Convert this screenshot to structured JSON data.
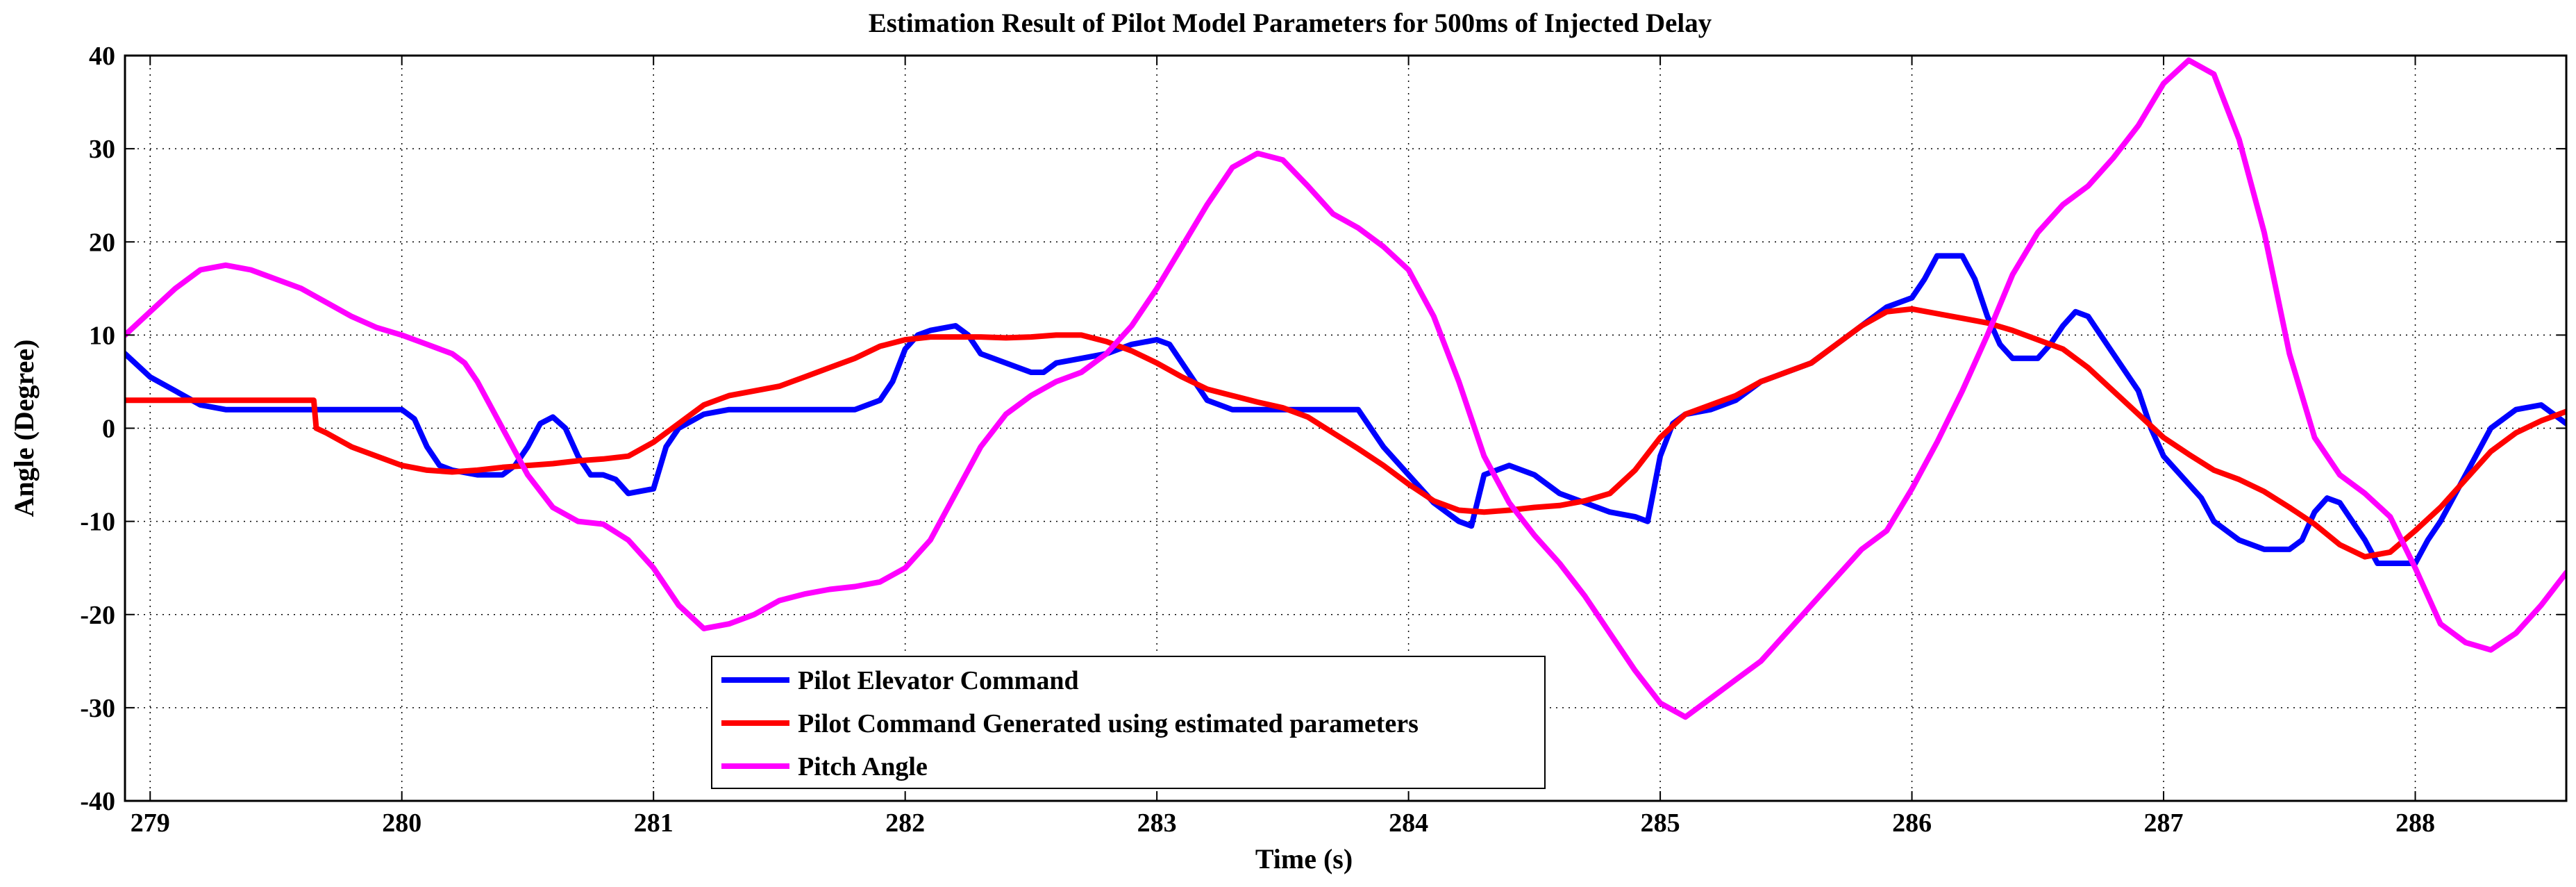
{
  "chart_data": {
    "type": "line",
    "title": "Estimation Result of Pilot Model Parameters for 500ms of Injected Delay",
    "xlabel": "Time (s)",
    "ylabel": "Angle (Degree)",
    "xlim": [
      278.9,
      288.6
    ],
    "ylim": [
      -40,
      40
    ],
    "x_ticks": [
      279,
      280,
      281,
      282,
      283,
      284,
      285,
      286,
      287,
      288
    ],
    "y_ticks": [
      -40,
      -30,
      -20,
      -10,
      0,
      10,
      20,
      30,
      40
    ],
    "grid": true,
    "legend_position": "bottom-center",
    "series": [
      {
        "name": "Pilot Elevator Command",
        "color": "#0000ff",
        "points": [
          [
            278.9,
            8
          ],
          [
            279.0,
            5.5
          ],
          [
            279.1,
            4
          ],
          [
            279.2,
            2.5
          ],
          [
            279.3,
            2
          ],
          [
            279.5,
            2
          ],
          [
            279.7,
            2
          ],
          [
            279.85,
            2
          ],
          [
            280.0,
            2
          ],
          [
            280.05,
            1
          ],
          [
            280.1,
            -2
          ],
          [
            280.15,
            -4
          ],
          [
            280.2,
            -4.5
          ],
          [
            280.3,
            -5
          ],
          [
            280.4,
            -5
          ],
          [
            280.45,
            -4
          ],
          [
            280.5,
            -2
          ],
          [
            280.55,
            0.5
          ],
          [
            280.6,
            1.2
          ],
          [
            280.65,
            0
          ],
          [
            280.7,
            -3
          ],
          [
            280.75,
            -5
          ],
          [
            280.8,
            -5
          ],
          [
            280.85,
            -5.5
          ],
          [
            280.9,
            -7
          ],
          [
            281.0,
            -6.5
          ],
          [
            281.05,
            -2
          ],
          [
            281.1,
            0
          ],
          [
            281.2,
            1.5
          ],
          [
            281.3,
            2
          ],
          [
            281.5,
            2
          ],
          [
            281.7,
            2
          ],
          [
            281.8,
            2
          ],
          [
            281.9,
            3
          ],
          [
            281.95,
            5
          ],
          [
            282.0,
            8.5
          ],
          [
            282.05,
            10
          ],
          [
            282.1,
            10.5
          ],
          [
            282.2,
            11
          ],
          [
            282.25,
            10
          ],
          [
            282.3,
            8
          ],
          [
            282.4,
            7
          ],
          [
            282.5,
            6
          ],
          [
            282.55,
            6
          ],
          [
            282.6,
            7
          ],
          [
            282.7,
            7.5
          ],
          [
            282.8,
            8
          ],
          [
            282.9,
            9
          ],
          [
            283.0,
            9.5
          ],
          [
            283.05,
            9
          ],
          [
            283.1,
            7
          ],
          [
            283.2,
            3
          ],
          [
            283.3,
            2
          ],
          [
            283.5,
            2
          ],
          [
            283.7,
            2
          ],
          [
            283.8,
            2
          ],
          [
            283.85,
            0
          ],
          [
            283.9,
            -2
          ],
          [
            284.0,
            -5
          ],
          [
            284.1,
            -8
          ],
          [
            284.2,
            -10
          ],
          [
            284.25,
            -10.5
          ],
          [
            284.3,
            -5
          ],
          [
            284.4,
            -4
          ],
          [
            284.5,
            -5
          ],
          [
            284.6,
            -7
          ],
          [
            284.7,
            -8
          ],
          [
            284.8,
            -9
          ],
          [
            284.9,
            -9.5
          ],
          [
            284.95,
            -10
          ],
          [
            285.0,
            -3
          ],
          [
            285.05,
            0.5
          ],
          [
            285.1,
            1.5
          ],
          [
            285.2,
            2
          ],
          [
            285.3,
            3
          ],
          [
            285.4,
            5
          ],
          [
            285.5,
            6
          ],
          [
            285.6,
            7
          ],
          [
            285.7,
            9
          ],
          [
            285.8,
            11
          ],
          [
            285.9,
            13
          ],
          [
            286.0,
            14
          ],
          [
            286.05,
            16
          ],
          [
            286.1,
            18.5
          ],
          [
            286.2,
            18.5
          ],
          [
            286.25,
            16
          ],
          [
            286.3,
            12
          ],
          [
            286.35,
            9
          ],
          [
            286.4,
            7.5
          ],
          [
            286.5,
            7.5
          ],
          [
            286.55,
            9
          ],
          [
            286.6,
            11
          ],
          [
            286.65,
            12.5
          ],
          [
            286.7,
            12
          ],
          [
            286.8,
            8
          ],
          [
            286.9,
            4
          ],
          [
            286.95,
            0
          ],
          [
            287.0,
            -3
          ],
          [
            287.1,
            -6
          ],
          [
            287.15,
            -7.5
          ],
          [
            287.2,
            -10
          ],
          [
            287.3,
            -12
          ],
          [
            287.4,
            -13
          ],
          [
            287.5,
            -13
          ],
          [
            287.55,
            -12
          ],
          [
            287.6,
            -9
          ],
          [
            287.65,
            -7.5
          ],
          [
            287.7,
            -8
          ],
          [
            287.8,
            -12
          ],
          [
            287.85,
            -14.5
          ],
          [
            287.9,
            -14.5
          ],
          [
            288.0,
            -14.5
          ],
          [
            288.05,
            -12
          ],
          [
            288.1,
            -10
          ],
          [
            288.2,
            -5
          ],
          [
            288.3,
            0
          ],
          [
            288.4,
            2
          ],
          [
            288.5,
            2.5
          ],
          [
            288.55,
            1.5
          ],
          [
            288.6,
            0.5
          ]
        ]
      },
      {
        "name": "Pilot Command Generated using estimated parameters",
        "color": "#ff0000",
        "points": [
          [
            278.9,
            3
          ],
          [
            279.2,
            3
          ],
          [
            279.4,
            3
          ],
          [
            279.6,
            3
          ],
          [
            279.65,
            3
          ],
          [
            279.66,
            0
          ],
          [
            279.7,
            -0.5
          ],
          [
            279.8,
            -2
          ],
          [
            279.9,
            -3
          ],
          [
            280.0,
            -4
          ],
          [
            280.1,
            -4.5
          ],
          [
            280.2,
            -4.7
          ],
          [
            280.3,
            -4.5
          ],
          [
            280.4,
            -4.2
          ],
          [
            280.5,
            -4
          ],
          [
            280.6,
            -3.8
          ],
          [
            280.7,
            -3.5
          ],
          [
            280.8,
            -3.3
          ],
          [
            280.9,
            -3
          ],
          [
            281.0,
            -1.5
          ],
          [
            281.1,
            0.5
          ],
          [
            281.2,
            2.5
          ],
          [
            281.3,
            3.5
          ],
          [
            281.4,
            4
          ],
          [
            281.5,
            4.5
          ],
          [
            281.6,
            5.5
          ],
          [
            281.7,
            6.5
          ],
          [
            281.8,
            7.5
          ],
          [
            281.9,
            8.8
          ],
          [
            282.0,
            9.5
          ],
          [
            282.1,
            9.8
          ],
          [
            282.2,
            9.8
          ],
          [
            282.3,
            9.8
          ],
          [
            282.4,
            9.7
          ],
          [
            282.5,
            9.8
          ],
          [
            282.6,
            10
          ],
          [
            282.7,
            10
          ],
          [
            282.8,
            9.3
          ],
          [
            282.9,
            8.3
          ],
          [
            283.0,
            7
          ],
          [
            283.1,
            5.5
          ],
          [
            283.2,
            4.2
          ],
          [
            283.3,
            3.5
          ],
          [
            283.4,
            2.8
          ],
          [
            283.5,
            2.2
          ],
          [
            283.6,
            1.2
          ],
          [
            283.7,
            -0.5
          ],
          [
            283.8,
            -2.2
          ],
          [
            283.9,
            -4
          ],
          [
            284.0,
            -6
          ],
          [
            284.1,
            -7.8
          ],
          [
            284.2,
            -8.8
          ],
          [
            284.3,
            -9
          ],
          [
            284.4,
            -8.8
          ],
          [
            284.5,
            -8.5
          ],
          [
            284.6,
            -8.3
          ],
          [
            284.7,
            -7.8
          ],
          [
            284.8,
            -7
          ],
          [
            284.9,
            -4.5
          ],
          [
            285.0,
            -1
          ],
          [
            285.1,
            1.5
          ],
          [
            285.2,
            2.5
          ],
          [
            285.3,
            3.5
          ],
          [
            285.4,
            5
          ],
          [
            285.5,
            6
          ],
          [
            285.6,
            7
          ],
          [
            285.7,
            9
          ],
          [
            285.8,
            11
          ],
          [
            285.9,
            12.5
          ],
          [
            286.0,
            12.8
          ],
          [
            286.1,
            12.3
          ],
          [
            286.2,
            11.8
          ],
          [
            286.3,
            11.3
          ],
          [
            286.4,
            10.5
          ],
          [
            286.5,
            9.5
          ],
          [
            286.6,
            8.5
          ],
          [
            286.7,
            6.5
          ],
          [
            286.8,
            4
          ],
          [
            286.9,
            1.5
          ],
          [
            287.0,
            -1
          ],
          [
            287.1,
            -2.8
          ],
          [
            287.2,
            -4.5
          ],
          [
            287.3,
            -5.5
          ],
          [
            287.4,
            -6.8
          ],
          [
            287.5,
            -8.5
          ],
          [
            287.6,
            -10.3
          ],
          [
            287.7,
            -12.5
          ],
          [
            287.8,
            -13.8
          ],
          [
            287.9,
            -13.3
          ],
          [
            288.0,
            -11
          ],
          [
            288.1,
            -8.5
          ],
          [
            288.2,
            -5.5
          ],
          [
            288.3,
            -2.5
          ],
          [
            288.4,
            -0.5
          ],
          [
            288.5,
            0.8
          ],
          [
            288.6,
            1.8
          ]
        ]
      },
      {
        "name": "Pitch Angle",
        "color": "#ff00ff",
        "points": [
          [
            278.9,
            10
          ],
          [
            279.0,
            12.5
          ],
          [
            279.1,
            15
          ],
          [
            279.2,
            17
          ],
          [
            279.3,
            17.5
          ],
          [
            279.4,
            17
          ],
          [
            279.5,
            16
          ],
          [
            279.6,
            15
          ],
          [
            279.7,
            13.5
          ],
          [
            279.8,
            12
          ],
          [
            279.9,
            10.8
          ],
          [
            280.0,
            10
          ],
          [
            280.1,
            9
          ],
          [
            280.2,
            8
          ],
          [
            280.25,
            7
          ],
          [
            280.3,
            5
          ],
          [
            280.4,
            0
          ],
          [
            280.5,
            -5
          ],
          [
            280.6,
            -8.5
          ],
          [
            280.7,
            -10
          ],
          [
            280.8,
            -10.3
          ],
          [
            280.9,
            -12
          ],
          [
            281.0,
            -15
          ],
          [
            281.1,
            -19
          ],
          [
            281.2,
            -21.5
          ],
          [
            281.3,
            -21
          ],
          [
            281.4,
            -20
          ],
          [
            281.5,
            -18.5
          ],
          [
            281.6,
            -17.8
          ],
          [
            281.7,
            -17.3
          ],
          [
            281.8,
            -17
          ],
          [
            281.9,
            -16.5
          ],
          [
            282.0,
            -15
          ],
          [
            282.1,
            -12
          ],
          [
            282.2,
            -7
          ],
          [
            282.3,
            -2
          ],
          [
            282.4,
            1.5
          ],
          [
            282.5,
            3.5
          ],
          [
            282.6,
            5
          ],
          [
            282.7,
            6
          ],
          [
            282.8,
            8
          ],
          [
            282.9,
            11
          ],
          [
            283.0,
            15
          ],
          [
            283.1,
            19.5
          ],
          [
            283.2,
            24
          ],
          [
            283.3,
            28
          ],
          [
            283.4,
            29.5
          ],
          [
            283.5,
            28.8
          ],
          [
            283.6,
            26
          ],
          [
            283.7,
            23
          ],
          [
            283.8,
            21.5
          ],
          [
            283.9,
            19.5
          ],
          [
            284.0,
            17
          ],
          [
            284.1,
            12
          ],
          [
            284.2,
            5
          ],
          [
            284.3,
            -3
          ],
          [
            284.4,
            -8
          ],
          [
            284.5,
            -11.5
          ],
          [
            284.6,
            -14.5
          ],
          [
            284.7,
            -18
          ],
          [
            284.8,
            -22
          ],
          [
            284.9,
            -26
          ],
          [
            285.0,
            -29.5
          ],
          [
            285.1,
            -31
          ],
          [
            285.2,
            -29
          ],
          [
            285.3,
            -27
          ],
          [
            285.4,
            -25
          ],
          [
            285.5,
            -22
          ],
          [
            285.6,
            -19
          ],
          [
            285.7,
            -16
          ],
          [
            285.8,
            -13
          ],
          [
            285.9,
            -11
          ],
          [
            286.0,
            -6.5
          ],
          [
            286.1,
            -1.5
          ],
          [
            286.2,
            4
          ],
          [
            286.3,
            10
          ],
          [
            286.4,
            16.5
          ],
          [
            286.5,
            21
          ],
          [
            286.6,
            24
          ],
          [
            286.7,
            26
          ],
          [
            286.8,
            29
          ],
          [
            286.9,
            32.5
          ],
          [
            287.0,
            37
          ],
          [
            287.1,
            39.5
          ],
          [
            287.2,
            38
          ],
          [
            287.3,
            31
          ],
          [
            287.4,
            21
          ],
          [
            287.5,
            8
          ],
          [
            287.6,
            -1
          ],
          [
            287.7,
            -5
          ],
          [
            287.8,
            -7
          ],
          [
            287.9,
            -9.5
          ],
          [
            288.0,
            -15
          ],
          [
            288.1,
            -21
          ],
          [
            288.2,
            -23
          ],
          [
            288.3,
            -23.8
          ],
          [
            288.4,
            -22
          ],
          [
            288.5,
            -19
          ],
          [
            288.6,
            -15.5
          ]
        ]
      }
    ]
  }
}
